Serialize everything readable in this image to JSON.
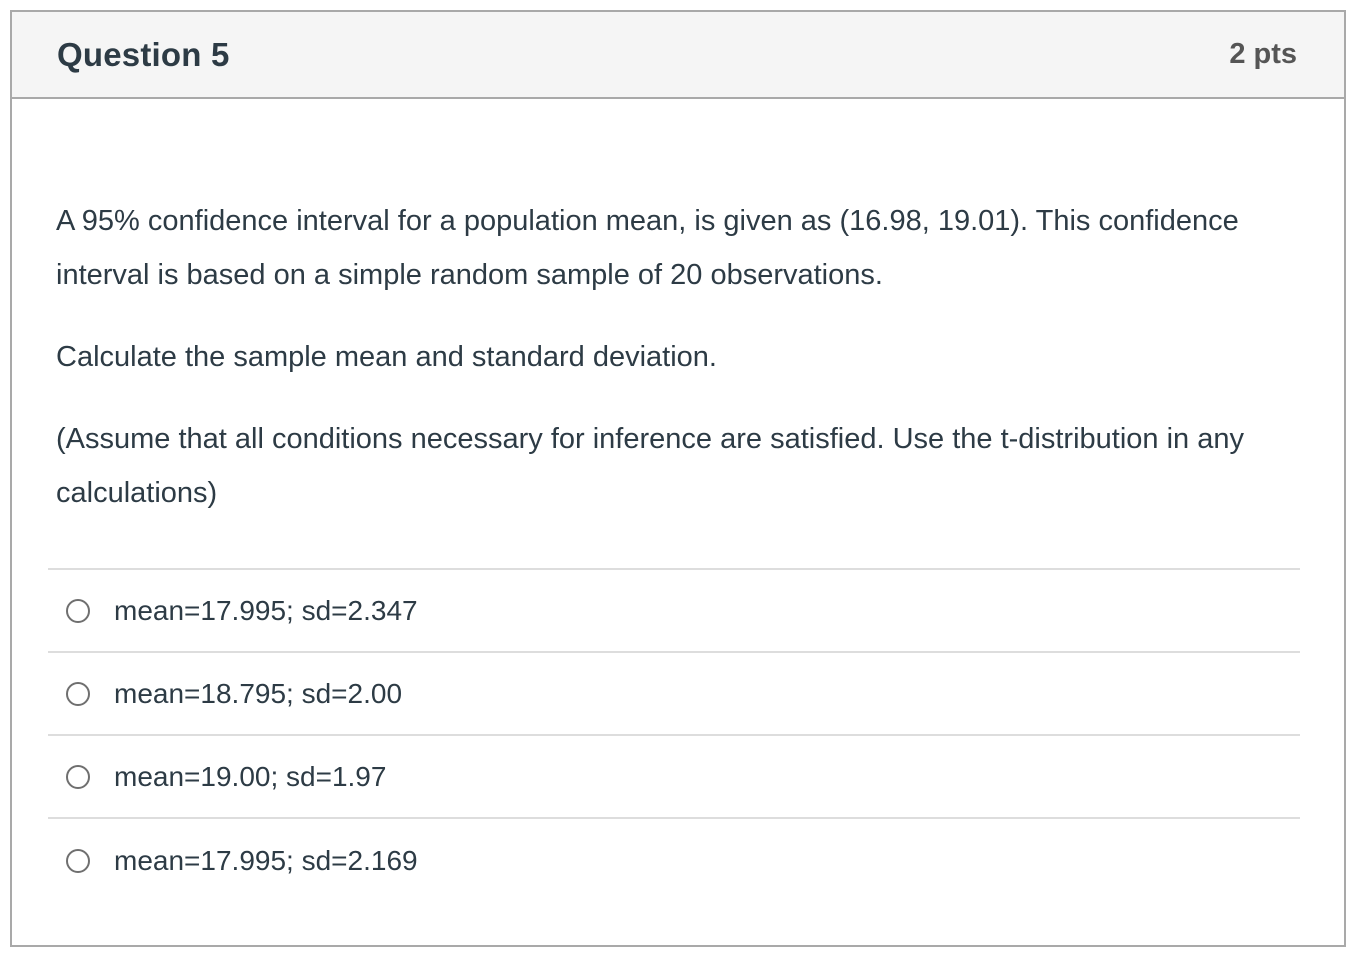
{
  "header": {
    "title": "Question 5",
    "points": "2 pts"
  },
  "question": {
    "paragraphs": [
      "A 95% confidence interval for a population mean, is given as (16.98, 19.01). This confidence interval is based on a simple random sample of 20 observations.",
      "Calculate the sample mean and standard deviation.",
      "(Assume that all conditions necessary for inference are satisfied. Use the t-distribution in any calculations)"
    ]
  },
  "options": [
    {
      "label": "mean=17.995; sd=2.347",
      "selected": false
    },
    {
      "label": "mean=18.795; sd=2.00",
      "selected": false
    },
    {
      "label": "mean=19.00; sd=1.97",
      "selected": false
    },
    {
      "label": "mean=17.995; sd=2.169",
      "selected": false
    }
  ],
  "colors": {
    "card_border": "#A9A9A9",
    "header_background": "#F5F5F5",
    "text": "#2D3B45",
    "points_text": "#555555",
    "divider": "#DDDDDD",
    "radio_border": "#6F6F6F"
  }
}
